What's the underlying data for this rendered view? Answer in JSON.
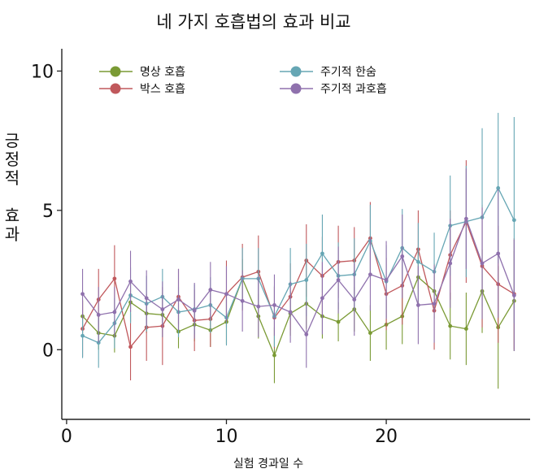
{
  "chart_data": {
    "type": "line",
    "title": "네 가지 호흡법의 효과 비교",
    "xlabel": "실험 경과일 수",
    "ylabel": "긍정적 효과",
    "ylabel_lines": [
      "긍",
      "정",
      "적",
      "",
      "효",
      "과"
    ],
    "xlim": [
      -0.3,
      29
    ],
    "ylim": [
      -2.5,
      10.8
    ],
    "xticks": [
      0,
      10,
      20
    ],
    "yticks": [
      0,
      5,
      10
    ],
    "grid": false,
    "legend_position": "top",
    "x": [
      1,
      2,
      3,
      4,
      5,
      6,
      7,
      8,
      9,
      10,
      11,
      12,
      13,
      14,
      15,
      16,
      17,
      18,
      19,
      20,
      21,
      22,
      23,
      24,
      25,
      26,
      27,
      28
    ],
    "series": [
      {
        "name": "명상 호흡",
        "color": "#7a9a34",
        "values": [
          1.2,
          0.6,
          0.5,
          1.7,
          1.3,
          1.25,
          0.65,
          0.9,
          0.7,
          1.0,
          2.55,
          1.2,
          -0.2,
          1.3,
          1.65,
          1.2,
          1.0,
          1.45,
          0.6,
          0.9,
          1.2,
          2.6,
          2.1,
          0.85,
          0.75,
          2.1,
          0.8,
          1.75
        ],
        "errors": [
          0.6,
          0.6,
          0.6,
          0.7,
          0.7,
          0.8,
          0.6,
          0.6,
          0.6,
          0.8,
          0.7,
          0.8,
          1.0,
          0.8,
          0.9,
          0.8,
          0.7,
          0.8,
          1.0,
          0.9,
          1.0,
          1.0,
          1.0,
          1.2,
          1.3,
          1.5,
          2.2,
          1.8
        ]
      },
      {
        "name": "박스 호흡",
        "color": "#c0585c",
        "values": [
          0.75,
          1.8,
          2.55,
          0.1,
          0.8,
          0.85,
          1.9,
          1.05,
          1.1,
          2.0,
          2.6,
          2.8,
          1.15,
          1.9,
          3.2,
          2.65,
          3.15,
          3.2,
          4.0,
          2.0,
          2.3,
          3.6,
          1.4,
          3.4,
          4.6,
          3.0,
          2.35,
          2.0
        ],
        "errors": [
          1.0,
          1.1,
          1.2,
          1.2,
          1.2,
          1.4,
          1.0,
          1.1,
          1.0,
          1.2,
          1.2,
          1.3,
          1.1,
          1.2,
          1.3,
          1.4,
          1.3,
          1.2,
          1.3,
          1.3,
          1.4,
          1.4,
          1.4,
          1.6,
          2.2,
          2.2,
          2.1,
          2.0
        ]
      },
      {
        "name": "주기적 한숨",
        "color": "#66a6b4",
        "values": [
          0.5,
          0.25,
          0.95,
          1.95,
          1.65,
          1.9,
          1.35,
          1.45,
          1.6,
          1.15,
          2.55,
          2.55,
          1.2,
          2.35,
          2.5,
          3.45,
          2.65,
          2.7,
          3.9,
          2.45,
          3.65,
          3.15,
          2.8,
          4.45,
          4.6,
          4.75,
          5.8,
          4.65
        ],
        "errors": [
          0.8,
          0.9,
          0.9,
          1.0,
          1.0,
          1.0,
          0.9,
          0.9,
          1.0,
          1.0,
          1.1,
          1.1,
          1.1,
          1.3,
          1.3,
          1.4,
          1.2,
          1.3,
          1.3,
          1.3,
          1.4,
          1.4,
          1.4,
          1.8,
          2.0,
          3.2,
          2.7,
          3.7
        ]
      },
      {
        "name": "주기적 과호흡",
        "color": "#8f71ad",
        "values": [
          2.0,
          1.25,
          1.35,
          2.45,
          1.85,
          1.45,
          1.8,
          1.4,
          2.15,
          2.0,
          1.75,
          1.55,
          1.6,
          1.35,
          0.55,
          1.85,
          2.5,
          1.8,
          2.7,
          2.5,
          3.35,
          1.6,
          1.65,
          3.1,
          4.7,
          3.1,
          3.45,
          1.95
        ],
        "errors": [
          0.9,
          1.0,
          0.9,
          1.1,
          1.0,
          1.0,
          1.1,
          1.0,
          1.0,
          1.0,
          1.1,
          1.1,
          1.1,
          1.1,
          1.2,
          1.3,
          1.2,
          1.3,
          1.3,
          1.4,
          1.5,
          1.4,
          1.4,
          1.6,
          1.8,
          2.0,
          2.3,
          2.0
        ]
      }
    ]
  }
}
